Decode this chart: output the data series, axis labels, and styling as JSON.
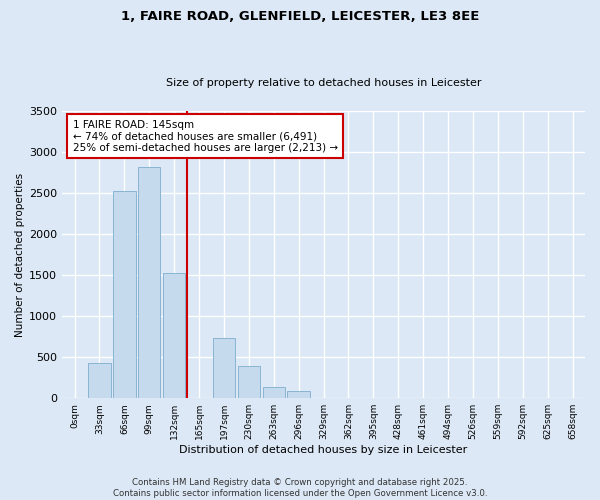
{
  "title_line1": "1, FAIRE ROAD, GLENFIELD, LEICESTER, LE3 8EE",
  "title_line2": "Size of property relative to detached houses in Leicester",
  "xlabel": "Distribution of detached houses by size in Leicester",
  "ylabel": "Number of detached properties",
  "categories": [
    "0sqm",
    "33sqm",
    "66sqm",
    "99sqm",
    "132sqm",
    "165sqm",
    "197sqm",
    "230sqm",
    "263sqm",
    "296sqm",
    "329sqm",
    "362sqm",
    "395sqm",
    "428sqm",
    "461sqm",
    "494sqm",
    "526sqm",
    "559sqm",
    "592sqm",
    "625sqm",
    "658sqm"
  ],
  "values": [
    0,
    430,
    2520,
    2820,
    1520,
    0,
    730,
    390,
    140,
    90,
    0,
    0,
    0,
    0,
    0,
    0,
    0,
    0,
    0,
    0,
    0
  ],
  "bar_color": "#c5dbed",
  "bar_edge_color": "#8ab4d4",
  "annotation_box_text": "1 FAIRE ROAD: 145sqm\n← 74% of detached houses are smaller (6,491)\n25% of semi-detached houses are larger (2,213) →",
  "annotation_box_color": "#ffffff",
  "annotation_box_edge_color": "#cc0000",
  "vline_color": "#cc0000",
  "vline_x": 4.5,
  "ylim": [
    0,
    3500
  ],
  "yticks": [
    0,
    500,
    1000,
    1500,
    2000,
    2500,
    3000,
    3500
  ],
  "footnote": "Contains HM Land Registry data © Crown copyright and database right 2025.\nContains public sector information licensed under the Open Government Licence v3.0.",
  "bg_color": "#dce8f5",
  "plot_bg_color": "#dce8f5",
  "grid_color": "#ffffff"
}
